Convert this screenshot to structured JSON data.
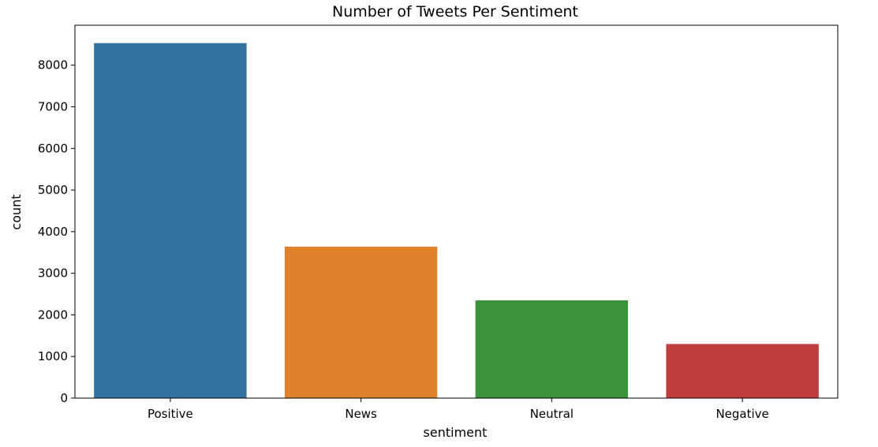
{
  "chart_data": {
    "type": "bar",
    "title": "Number of Tweets Per Sentiment",
    "xlabel": "sentiment",
    "ylabel": "count",
    "categories": [
      "Positive",
      "News",
      "Neutral",
      "Negative"
    ],
    "values": [
      8530,
      3640,
      2350,
      1300
    ],
    "colors": [
      "#3274a1",
      "#e1812c",
      "#3a923a",
      "#c03d3e"
    ],
    "ylim": [
      0,
      8960
    ],
    "yticks": [
      0,
      1000,
      2000,
      3000,
      4000,
      5000,
      6000,
      7000,
      8000
    ],
    "ytick_labels": [
      "0",
      "1000",
      "2000",
      "3000",
      "4000",
      "5000",
      "6000",
      "7000",
      "8000"
    ],
    "grid": false,
    "legend": "none"
  }
}
